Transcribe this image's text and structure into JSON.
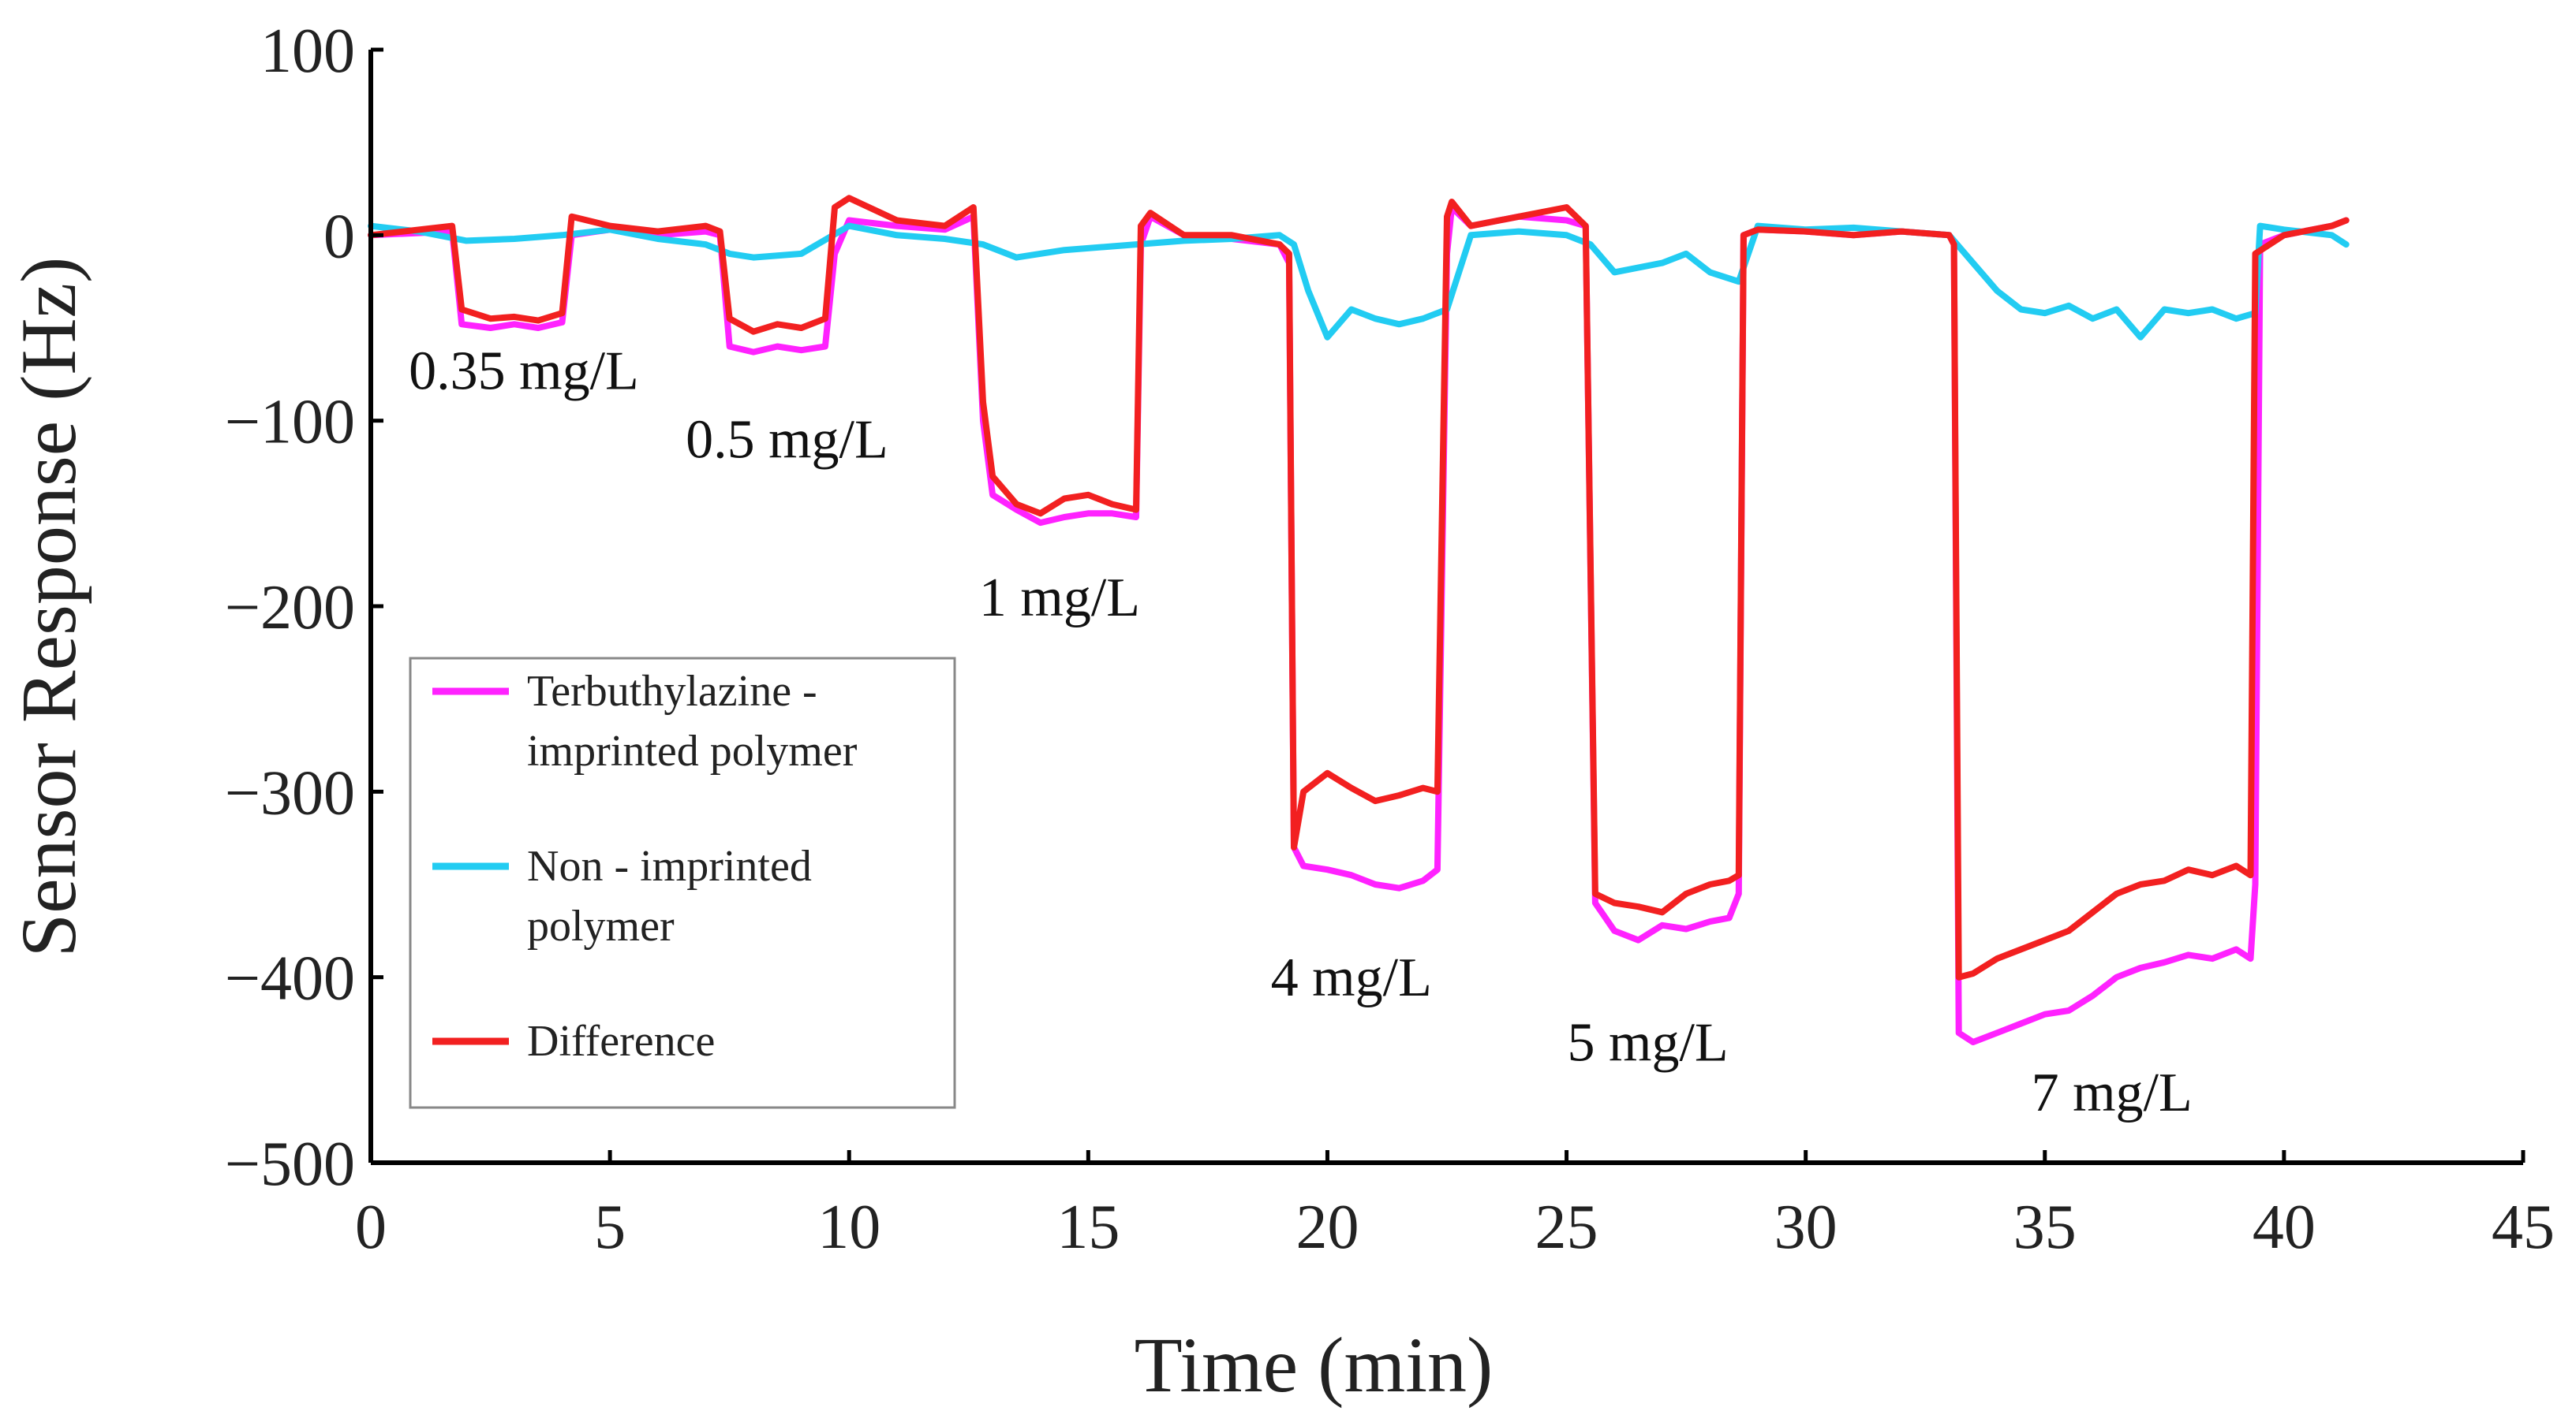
{
  "chart_data": {
    "type": "line",
    "title": "",
    "xlabel": "Time (min)",
    "ylabel": "Sensor Response (Hz)",
    "xlim": [
      0,
      45
    ],
    "ylim": [
      -500,
      100
    ],
    "xticks": [
      0,
      5,
      10,
      15,
      20,
      25,
      30,
      35,
      40,
      45
    ],
    "yticks": [
      100,
      0,
      -100,
      -200,
      -300,
      -400,
      -500
    ],
    "ytick_labels": [
      "100",
      "0",
      "−100",
      "−200",
      "−300",
      "−400",
      "−500"
    ],
    "grid": false,
    "legend_position": "lower-left",
    "series": [
      {
        "name": "Terbuthylazine - imprinted polymer",
        "legend_lines": [
          "Terbuthylazine -",
          "imprinted polymer"
        ],
        "color": "#ff22ff",
        "points": [
          [
            0,
            0
          ],
          [
            1.7,
            2
          ],
          [
            1.9,
            -48
          ],
          [
            2.5,
            -50
          ],
          [
            3.0,
            -48
          ],
          [
            3.5,
            -50
          ],
          [
            4.0,
            -47
          ],
          [
            4.2,
            0
          ],
          [
            5,
            3
          ],
          [
            6,
            0
          ],
          [
            7,
            2
          ],
          [
            7.3,
            0
          ],
          [
            7.5,
            -60
          ],
          [
            8,
            -63
          ],
          [
            8.5,
            -60
          ],
          [
            9,
            -62
          ],
          [
            9.5,
            -60
          ],
          [
            9.7,
            -10
          ],
          [
            10,
            8
          ],
          [
            11,
            5
          ],
          [
            12,
            3
          ],
          [
            12.6,
            10
          ],
          [
            12.8,
            -100
          ],
          [
            13,
            -140
          ],
          [
            13.5,
            -148
          ],
          [
            14,
            -155
          ],
          [
            14.5,
            -152
          ],
          [
            15,
            -150
          ],
          [
            15.5,
            -150
          ],
          [
            16,
            -152
          ],
          [
            16.1,
            -5
          ],
          [
            16.3,
            10
          ],
          [
            17,
            0
          ],
          [
            18,
            -2
          ],
          [
            19,
            -5
          ],
          [
            19.2,
            -15
          ],
          [
            19.3,
            -330
          ],
          [
            19.5,
            -340
          ],
          [
            20,
            -342
          ],
          [
            20.5,
            -345
          ],
          [
            21,
            -350
          ],
          [
            21.5,
            -352
          ],
          [
            22,
            -348
          ],
          [
            22.3,
            -342
          ],
          [
            22.5,
            -10
          ],
          [
            22.6,
            15
          ],
          [
            23,
            5
          ],
          [
            24,
            10
          ],
          [
            25,
            8
          ],
          [
            25.4,
            5
          ],
          [
            25.6,
            -360
          ],
          [
            26,
            -375
          ],
          [
            26.5,
            -380
          ],
          [
            27,
            -372
          ],
          [
            27.5,
            -374
          ],
          [
            28,
            -370
          ],
          [
            28.4,
            -368
          ],
          [
            28.6,
            -355
          ],
          [
            28.7,
            0
          ],
          [
            29,
            3
          ],
          [
            30,
            2
          ],
          [
            31,
            0
          ],
          [
            32,
            2
          ],
          [
            33,
            0
          ],
          [
            33.1,
            -5
          ],
          [
            33.2,
            -430
          ],
          [
            33.5,
            -435
          ],
          [
            34,
            -430
          ],
          [
            34.5,
            -425
          ],
          [
            35,
            -420
          ],
          [
            35.5,
            -418
          ],
          [
            36,
            -410
          ],
          [
            36.5,
            -400
          ],
          [
            37,
            -395
          ],
          [
            37.5,
            -392
          ],
          [
            38,
            -388
          ],
          [
            38.5,
            -390
          ],
          [
            39,
            -385
          ],
          [
            39.3,
            -390
          ],
          [
            39.4,
            -350
          ],
          [
            39.5,
            -5
          ],
          [
            40,
            0
          ],
          [
            41,
            5
          ],
          [
            41.3,
            8
          ]
        ]
      },
      {
        "name": "Non - imprinted polymer",
        "legend_lines": [
          "Non - imprinted",
          "polymer"
        ],
        "color": "#22ccf2",
        "points": [
          [
            0,
            5
          ],
          [
            1,
            2
          ],
          [
            2,
            -3
          ],
          [
            3,
            -2
          ],
          [
            4,
            0
          ],
          [
            5,
            3
          ],
          [
            6,
            -2
          ],
          [
            7,
            -5
          ],
          [
            7.5,
            -10
          ],
          [
            8,
            -12
          ],
          [
            9,
            -10
          ],
          [
            10,
            5
          ],
          [
            11,
            0
          ],
          [
            12,
            -2
          ],
          [
            12.8,
            -5
          ],
          [
            13.5,
            -12
          ],
          [
            14.5,
            -8
          ],
          [
            15.5,
            -6
          ],
          [
            17,
            -3
          ],
          [
            18,
            -2
          ],
          [
            19,
            0
          ],
          [
            19.3,
            -5
          ],
          [
            19.6,
            -30
          ],
          [
            20,
            -55
          ],
          [
            20.5,
            -40
          ],
          [
            21,
            -45
          ],
          [
            21.5,
            -48
          ],
          [
            22,
            -45
          ],
          [
            22.5,
            -40
          ],
          [
            23,
            0
          ],
          [
            24,
            2
          ],
          [
            25,
            0
          ],
          [
            25.5,
            -5
          ],
          [
            26,
            -20
          ],
          [
            27,
            -15
          ],
          [
            27.5,
            -10
          ],
          [
            28,
            -20
          ],
          [
            28.6,
            -25
          ],
          [
            29,
            5
          ],
          [
            30,
            3
          ],
          [
            31,
            4
          ],
          [
            32,
            2
          ],
          [
            33,
            0
          ],
          [
            33.5,
            -15
          ],
          [
            34,
            -30
          ],
          [
            34.5,
            -40
          ],
          [
            35,
            -42
          ],
          [
            35.5,
            -38
          ],
          [
            36,
            -45
          ],
          [
            36.5,
            -40
          ],
          [
            37,
            -55
          ],
          [
            37.5,
            -40
          ],
          [
            38,
            -42
          ],
          [
            38.5,
            -40
          ],
          [
            39,
            -45
          ],
          [
            39.4,
            -42
          ],
          [
            39.5,
            5
          ],
          [
            40,
            3
          ],
          [
            41,
            0
          ],
          [
            41.3,
            -5
          ]
        ]
      },
      {
        "name": "Difference",
        "legend_lines": [
          "Difference"
        ],
        "color": "#f22020",
        "points": [
          [
            0,
            0
          ],
          [
            1.7,
            5
          ],
          [
            1.9,
            -40
          ],
          [
            2.5,
            -45
          ],
          [
            3,
            -44
          ],
          [
            3.5,
            -46
          ],
          [
            4,
            -42
          ],
          [
            4.2,
            10
          ],
          [
            5,
            5
          ],
          [
            6,
            2
          ],
          [
            7,
            5
          ],
          [
            7.3,
            2
          ],
          [
            7.5,
            -45
          ],
          [
            8,
            -52
          ],
          [
            8.5,
            -48
          ],
          [
            9,
            -50
          ],
          [
            9.5,
            -45
          ],
          [
            9.7,
            15
          ],
          [
            10,
            20
          ],
          [
            11,
            8
          ],
          [
            12,
            5
          ],
          [
            12.6,
            15
          ],
          [
            12.8,
            -90
          ],
          [
            13,
            -130
          ],
          [
            13.5,
            -145
          ],
          [
            14,
            -150
          ],
          [
            14.5,
            -142
          ],
          [
            15,
            -140
          ],
          [
            15.5,
            -145
          ],
          [
            16,
            -148
          ],
          [
            16.1,
            5
          ],
          [
            16.3,
            12
          ],
          [
            17,
            0
          ],
          [
            18,
            0
          ],
          [
            19,
            -5
          ],
          [
            19.2,
            -10
          ],
          [
            19.3,
            -330
          ],
          [
            19.5,
            -300
          ],
          [
            20,
            -290
          ],
          [
            20.5,
            -298
          ],
          [
            21,
            -305
          ],
          [
            21.5,
            -302
          ],
          [
            22,
            -298
          ],
          [
            22.3,
            -300
          ],
          [
            22.5,
            10
          ],
          [
            22.6,
            18
          ],
          [
            23,
            5
          ],
          [
            24,
            10
          ],
          [
            25,
            15
          ],
          [
            25.4,
            5
          ],
          [
            25.6,
            -355
          ],
          [
            26,
            -360
          ],
          [
            26.5,
            -362
          ],
          [
            27,
            -365
          ],
          [
            27.5,
            -355
          ],
          [
            28,
            -350
          ],
          [
            28.4,
            -348
          ],
          [
            28.6,
            -345
          ],
          [
            28.7,
            0
          ],
          [
            29,
            3
          ],
          [
            30,
            2
          ],
          [
            31,
            0
          ],
          [
            32,
            2
          ],
          [
            33,
            0
          ],
          [
            33.1,
            -5
          ],
          [
            33.2,
            -400
          ],
          [
            33.5,
            -398
          ],
          [
            34,
            -390
          ],
          [
            34.5,
            -385
          ],
          [
            35,
            -380
          ],
          [
            35.5,
            -375
          ],
          [
            36,
            -365
          ],
          [
            36.5,
            -355
          ],
          [
            37,
            -350
          ],
          [
            37.5,
            -348
          ],
          [
            38,
            -342
          ],
          [
            38.5,
            -345
          ],
          [
            39,
            -340
          ],
          [
            39.3,
            -345
          ],
          [
            39.4,
            -10
          ],
          [
            40,
            0
          ],
          [
            41,
            5
          ],
          [
            41.3,
            8
          ]
        ]
      }
    ],
    "annotations": [
      {
        "text": "0.35 mg/L",
        "x": 3.2,
        "y": -83
      },
      {
        "text": "0.5 mg/L",
        "x": 8.7,
        "y": -120
      },
      {
        "text": "1 mg/L",
        "x": 14.4,
        "y": -205
      },
      {
        "text": "4 mg/L",
        "x": 20.5,
        "y": -410
      },
      {
        "text": "5 mg/L",
        "x": 26.7,
        "y": -445
      },
      {
        "text": "7 mg/L",
        "x": 36.4,
        "y": -472
      }
    ]
  }
}
